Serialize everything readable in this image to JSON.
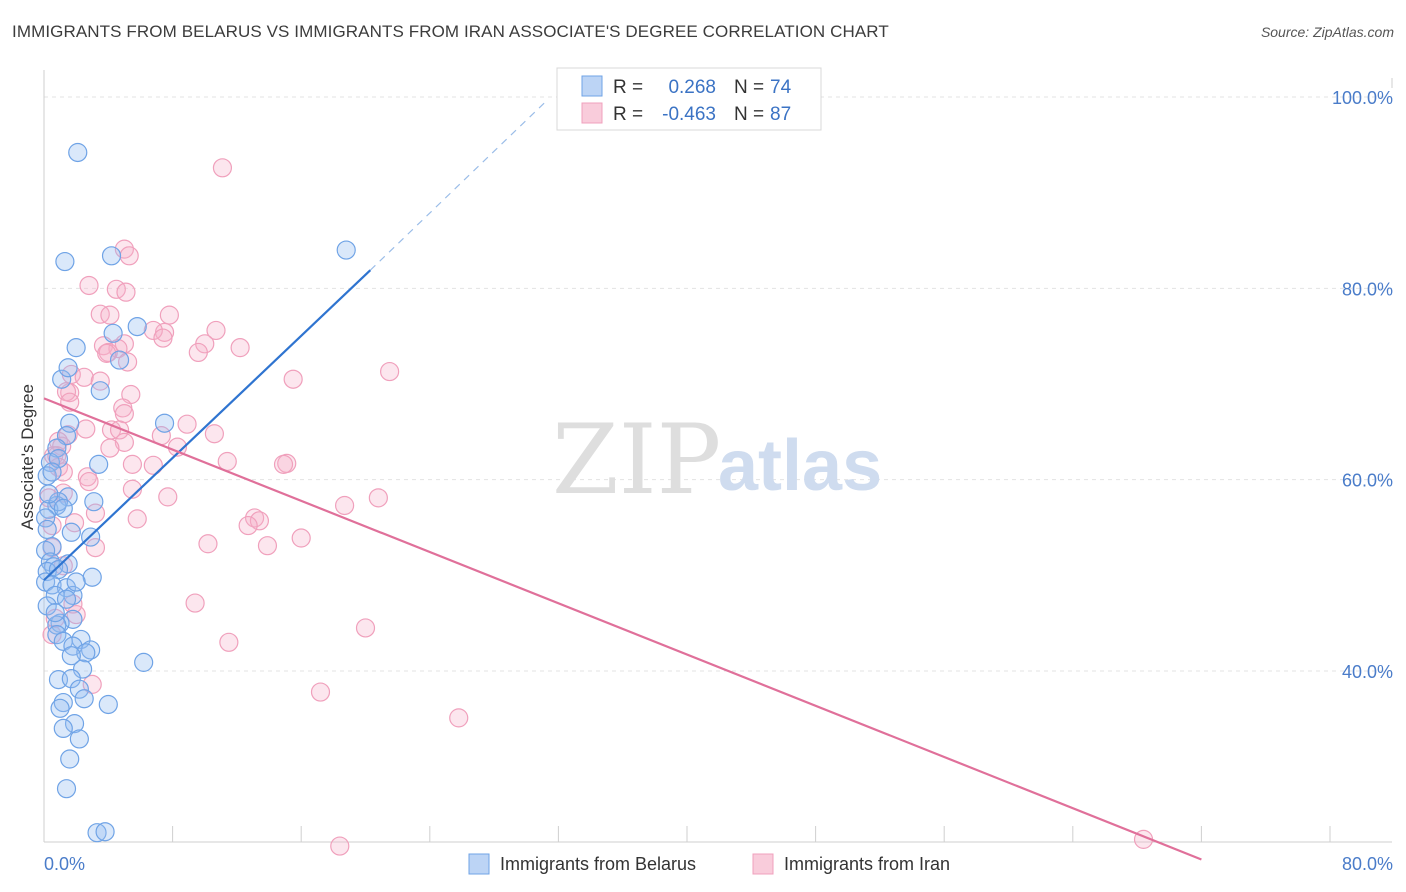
{
  "title": "IMMIGRANTS FROM BELARUS VS IMMIGRANTS FROM IRAN ASSOCIATE'S DEGREE CORRELATION CHART",
  "source": "Source: ZipAtlas.com",
  "watermark": {
    "zip": "ZIP",
    "atlas": "atlas"
  },
  "colors": {
    "belarus": "#6fa3e6",
    "belarus_line": "#2f74d0",
    "iran": "#f0a0bc",
    "iran_line": "#e0709a",
    "tick": "#4a7cc9"
  },
  "legend": {
    "r_label": "R =",
    "n_label": "N =",
    "rows": [
      {
        "r": "0.268",
        "n": "74"
      },
      {
        "r": "-0.463",
        "n": "87"
      }
    ]
  },
  "bottom_legend": [
    "Immigrants from Belarus",
    "Immigrants from Iran"
  ],
  "chart_data": {
    "type": "scatter",
    "title": "IMMIGRANTS FROM BELARUS VS IMMIGRANTS FROM IRAN ASSOCIATE'S DEGREE CORRELATION CHART",
    "xlabel": "",
    "ylabel": "Associate's Degree",
    "xlim": [
      0,
      80
    ],
    "ylim": [
      20,
      102
    ],
    "x_tick_labels": [
      "0.0%",
      "80.0%"
    ],
    "y_ticks": [
      40,
      60,
      80,
      100
    ],
    "y_tick_labels": [
      "40.0%",
      "60.0%",
      "80.0%",
      "100.0%"
    ],
    "grid": true,
    "series": [
      {
        "name": "Immigrants from Belarus",
        "R": 0.268,
        "N": 74,
        "trend": {
          "x0": 0,
          "y0": 49.5,
          "x1": 20.3,
          "y1": 81.9,
          "dash_x1": 31.2,
          "dash_y1": 99.5
        },
        "points": [
          [
            2.1,
            94.2
          ],
          [
            1.3,
            82.8
          ],
          [
            4.2,
            83.4
          ],
          [
            18.8,
            84.0
          ],
          [
            5.8,
            76.0
          ],
          [
            4.3,
            75.3
          ],
          [
            2.0,
            73.8
          ],
          [
            4.7,
            72.5
          ],
          [
            1.1,
            70.5
          ],
          [
            1.5,
            71.7
          ],
          [
            3.5,
            69.3
          ],
          [
            7.5,
            65.9
          ],
          [
            1.6,
            65.9
          ],
          [
            1.4,
            64.6
          ],
          [
            0.8,
            63.3
          ],
          [
            0.4,
            61.8
          ],
          [
            0.9,
            62.2
          ],
          [
            3.4,
            61.6
          ],
          [
            0.2,
            60.4
          ],
          [
            0.5,
            60.8
          ],
          [
            1.5,
            58.2
          ],
          [
            3.1,
            57.7
          ],
          [
            0.8,
            57.3
          ],
          [
            0.3,
            56.9
          ],
          [
            0.9,
            57.7
          ],
          [
            0.1,
            56.0
          ],
          [
            1.2,
            57.0
          ],
          [
            0.2,
            54.8
          ],
          [
            1.7,
            54.5
          ],
          [
            0.5,
            53.0
          ],
          [
            2.9,
            54.0
          ],
          [
            0.1,
            52.6
          ],
          [
            0.4,
            51.4
          ],
          [
            1.5,
            51.2
          ],
          [
            0.6,
            50.9
          ],
          [
            0.2,
            50.4
          ],
          [
            0.9,
            50.6
          ],
          [
            3.0,
            49.8
          ],
          [
            0.1,
            49.3
          ],
          [
            0.5,
            49.0
          ],
          [
            1.4,
            48.7
          ],
          [
            0.7,
            47.9
          ],
          [
            1.8,
            47.9
          ],
          [
            1.4,
            47.5
          ],
          [
            0.2,
            46.8
          ],
          [
            1.8,
            45.4
          ],
          [
            1.0,
            45.0
          ],
          [
            0.8,
            44.8
          ],
          [
            0.8,
            43.8
          ],
          [
            2.3,
            43.3
          ],
          [
            1.2,
            43.1
          ],
          [
            1.8,
            42.6
          ],
          [
            2.9,
            42.2
          ],
          [
            2.6,
            41.9
          ],
          [
            1.7,
            41.6
          ],
          [
            6.2,
            40.9
          ],
          [
            2.4,
            40.2
          ],
          [
            0.9,
            39.1
          ],
          [
            1.7,
            39.2
          ],
          [
            2.2,
            38.1
          ],
          [
            2.5,
            37.1
          ],
          [
            1.2,
            36.7
          ],
          [
            1.0,
            36.1
          ],
          [
            4.0,
            36.5
          ],
          [
            1.9,
            34.5
          ],
          [
            1.2,
            34.0
          ],
          [
            2.2,
            32.9
          ],
          [
            1.6,
            30.8
          ],
          [
            1.4,
            27.7
          ],
          [
            3.3,
            23.1
          ],
          [
            3.8,
            23.2
          ],
          [
            0.3,
            58.5
          ],
          [
            2.0,
            49.3
          ],
          [
            0.7,
            46.1
          ]
        ]
      },
      {
        "name": "Immigrants from Iran",
        "R": -0.463,
        "N": 87,
        "trend": {
          "x0": 0,
          "y0": 68.5,
          "x1": 72.0,
          "y1": 20.3
        },
        "points": [
          [
            11.1,
            92.6
          ],
          [
            5.0,
            84.1
          ],
          [
            5.3,
            83.4
          ],
          [
            2.8,
            80.3
          ],
          [
            4.5,
            79.9
          ],
          [
            5.1,
            79.6
          ],
          [
            3.5,
            77.3
          ],
          [
            4.1,
            77.2
          ],
          [
            7.8,
            77.2
          ],
          [
            10.7,
            75.6
          ],
          [
            7.5,
            75.4
          ],
          [
            6.8,
            75.6
          ],
          [
            7.4,
            74.8
          ],
          [
            3.7,
            74.0
          ],
          [
            10.0,
            74.2
          ],
          [
            5.0,
            74.2
          ],
          [
            12.2,
            73.8
          ],
          [
            4.6,
            73.7
          ],
          [
            9.6,
            73.3
          ],
          [
            4.0,
            73.3
          ],
          [
            3.9,
            73.2
          ],
          [
            5.2,
            72.3
          ],
          [
            21.5,
            71.3
          ],
          [
            1.7,
            71.0
          ],
          [
            2.5,
            70.7
          ],
          [
            15.5,
            70.5
          ],
          [
            3.5,
            70.3
          ],
          [
            1.6,
            69.1
          ],
          [
            1.4,
            69.2
          ],
          [
            5.4,
            68.9
          ],
          [
            1.6,
            68.1
          ],
          [
            4.9,
            67.5
          ],
          [
            5.0,
            66.9
          ],
          [
            8.9,
            65.8
          ],
          [
            2.6,
            65.3
          ],
          [
            4.2,
            65.2
          ],
          [
            4.7,
            65.2
          ],
          [
            1.5,
            64.7
          ],
          [
            0.9,
            64.0
          ],
          [
            10.6,
            64.8
          ],
          [
            7.3,
            64.6
          ],
          [
            1.1,
            63.5
          ],
          [
            5.0,
            63.9
          ],
          [
            4.1,
            63.3
          ],
          [
            8.3,
            63.4
          ],
          [
            0.6,
            62.5
          ],
          [
            0.8,
            62.5
          ],
          [
            5.5,
            61.6
          ],
          [
            6.8,
            61.5
          ],
          [
            11.4,
            61.9
          ],
          [
            15.1,
            61.7
          ],
          [
            14.9,
            61.6
          ],
          [
            0.9,
            61.3
          ],
          [
            1.2,
            60.8
          ],
          [
            2.7,
            60.3
          ],
          [
            2.8,
            59.8
          ],
          [
            5.5,
            59.0
          ],
          [
            1.2,
            58.6
          ],
          [
            7.7,
            58.2
          ],
          [
            20.8,
            58.1
          ],
          [
            0.3,
            58.1
          ],
          [
            18.7,
            57.3
          ],
          [
            3.2,
            56.5
          ],
          [
            13.1,
            56.0
          ],
          [
            5.8,
            55.9
          ],
          [
            13.4,
            55.7
          ],
          [
            12.7,
            55.2
          ],
          [
            1.9,
            55.5
          ],
          [
            0.5,
            55.2
          ],
          [
            16.0,
            53.9
          ],
          [
            10.2,
            53.3
          ],
          [
            13.9,
            53.1
          ],
          [
            3.2,
            52.9
          ],
          [
            0.5,
            52.9
          ],
          [
            1.2,
            51.0
          ],
          [
            9.4,
            47.1
          ],
          [
            2.0,
            45.9
          ],
          [
            0.7,
            45.5
          ],
          [
            20.0,
            44.5
          ],
          [
            11.5,
            43.0
          ],
          [
            0.5,
            43.8
          ],
          [
            3.0,
            38.6
          ],
          [
            17.2,
            37.8
          ],
          [
            25.8,
            35.1
          ],
          [
            68.4,
            22.4
          ],
          [
            18.4,
            21.7
          ],
          [
            1.8,
            47.0
          ]
        ]
      }
    ]
  }
}
